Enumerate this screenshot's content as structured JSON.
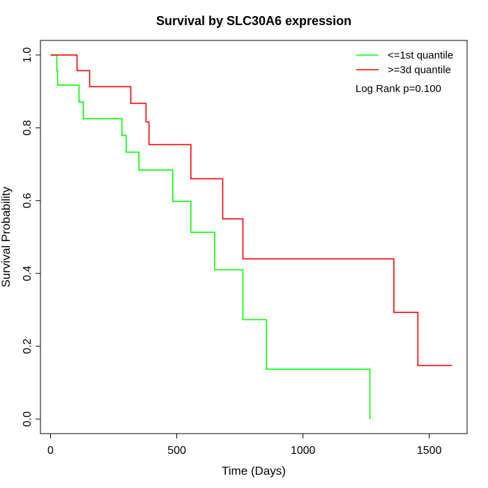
{
  "chart_data": {
    "type": "line",
    "step": true,
    "title": "Survival by SLC30A6 expression",
    "xlabel": "Time (Days)",
    "ylabel": "Survival Probability",
    "xlim": [
      -40,
      1650
    ],
    "ylim": [
      -0.04,
      1.04
    ],
    "xticks": [
      0,
      500,
      1000,
      1500
    ],
    "xtick_labels": [
      "0",
      "500",
      "1000",
      "1500"
    ],
    "yticks": [
      0.0,
      0.2,
      0.4,
      0.6,
      0.8,
      1.0
    ],
    "ytick_labels": [
      "0.0",
      "0.2",
      "0.4",
      "0.6",
      "0.8",
      "1.0"
    ],
    "grid": false,
    "legend_position": "top-right",
    "annotation": "Log Rank p=0.100",
    "series": [
      {
        "name": "<=1st quantile",
        "color": "#00ff00",
        "points": [
          [
            0,
            1.0
          ],
          [
            25,
            1.0
          ],
          [
            25,
            0.957
          ],
          [
            28,
            0.957
          ],
          [
            28,
            0.917
          ],
          [
            113,
            0.917
          ],
          [
            113,
            0.871
          ],
          [
            130,
            0.871
          ],
          [
            130,
            0.825
          ],
          [
            283,
            0.825
          ],
          [
            283,
            0.779
          ],
          [
            300,
            0.779
          ],
          [
            300,
            0.733
          ],
          [
            350,
            0.733
          ],
          [
            350,
            0.684
          ],
          [
            484,
            0.684
          ],
          [
            484,
            0.598
          ],
          [
            556,
            0.598
          ],
          [
            556,
            0.513
          ],
          [
            650,
            0.513
          ],
          [
            650,
            0.41
          ],
          [
            762,
            0.41
          ],
          [
            762,
            0.273
          ],
          [
            855,
            0.273
          ],
          [
            855,
            0.137
          ],
          [
            1265,
            0.137
          ],
          [
            1265,
            0.0
          ]
        ]
      },
      {
        "name": ">=3d quantile",
        "color": "#ff0000",
        "points": [
          [
            0,
            1.0
          ],
          [
            105,
            1.0
          ],
          [
            105,
            0.957
          ],
          [
            155,
            0.957
          ],
          [
            155,
            0.913
          ],
          [
            318,
            0.913
          ],
          [
            318,
            0.867
          ],
          [
            378,
            0.867
          ],
          [
            378,
            0.816
          ],
          [
            390,
            0.816
          ],
          [
            390,
            0.754
          ],
          [
            556,
            0.754
          ],
          [
            556,
            0.66
          ],
          [
            682,
            0.66
          ],
          [
            682,
            0.55
          ],
          [
            762,
            0.55
          ],
          [
            762,
            0.44
          ],
          [
            1360,
            0.44
          ],
          [
            1360,
            0.293
          ],
          [
            1455,
            0.293
          ],
          [
            1455,
            0.147
          ],
          [
            1590,
            0.147
          ]
        ]
      }
    ]
  }
}
